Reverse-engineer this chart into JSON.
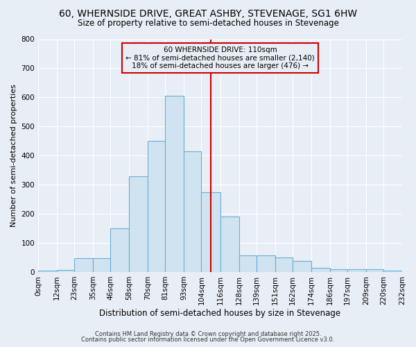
{
  "title1": "60, WHERNSIDE DRIVE, GREAT ASHBY, STEVENAGE, SG1 6HW",
  "title2": "Size of property relative to semi-detached houses in Stevenage",
  "xlabel": "Distribution of semi-detached houses by size in Stevenage",
  "ylabel": "Number of semi-detached properties",
  "bin_edges": [
    0,
    12,
    23,
    35,
    46,
    58,
    70,
    81,
    93,
    104,
    116,
    128,
    139,
    151,
    162,
    174,
    186,
    197,
    209,
    220,
    232
  ],
  "bar_heights": [
    5,
    8,
    48,
    48,
    150,
    330,
    450,
    605,
    415,
    275,
    190,
    57,
    57,
    50,
    37,
    15,
    10,
    10,
    10,
    5
  ],
  "bar_color": "#d0e3f0",
  "bar_edgecolor": "#6aaed6",
  "property_size": 110,
  "vline_color": "#cc0000",
  "annotation_box_edgecolor": "#cc0000",
  "annotation_text_line1": "60 WHERNSIDE DRIVE: 110sqm",
  "annotation_text_line2": "← 81% of semi-detached houses are smaller (2,140)",
  "annotation_text_line3": "18% of semi-detached houses are larger (476) →",
  "footnote1": "Contains HM Land Registry data © Crown copyright and database right 2025.",
  "footnote2": "Contains public sector information licensed under the Open Government Licence v3.0.",
  "ylim": [
    0,
    800
  ],
  "yticks": [
    0,
    100,
    200,
    300,
    400,
    500,
    600,
    700,
    800
  ],
  "background_color": "#e8eef5",
  "grid_color": "#ffffff",
  "title_fontsize": 10,
  "subtitle_fontsize": 8.5,
  "xlabel_fontsize": 8.5,
  "ylabel_fontsize": 8,
  "tick_fontsize": 7.5,
  "annotation_fontsize": 7.5,
  "footnote_fontsize": 6
}
